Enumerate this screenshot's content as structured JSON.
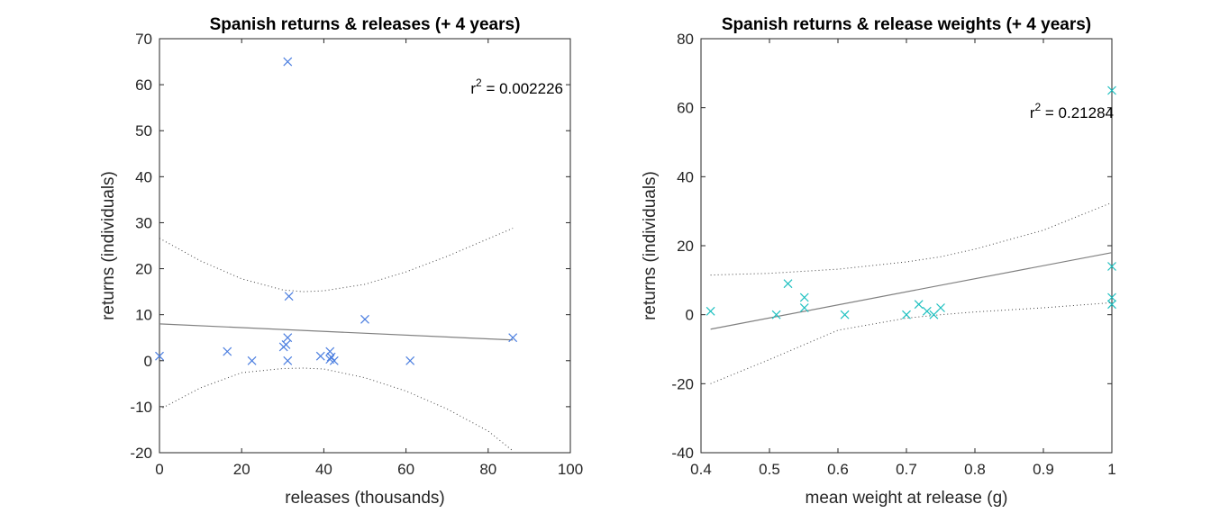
{
  "chart_data": [
    {
      "type": "scatter",
      "title": "Spanish returns & releases (+ 4 years)",
      "xlabel": "releases (thousands)",
      "ylabel": "returns (individuals)",
      "xlim": [
        0,
        100
      ],
      "ylim": [
        -20,
        70
      ],
      "xticks": [
        0,
        20,
        40,
        60,
        80,
        100
      ],
      "yticks": [
        -20,
        -10,
        0,
        10,
        20,
        30,
        40,
        50,
        60,
        70
      ],
      "grid": false,
      "marker": "x",
      "marker_color": "#4d7fe0",
      "annotation": {
        "prefix": "r",
        "superscript": "2",
        "value": "= 0.002226"
      },
      "points": [
        {
          "x": 0,
          "y": 1
        },
        {
          "x": 16.5,
          "y": 2
        },
        {
          "x": 22.5,
          "y": 0
        },
        {
          "x": 30.2,
          "y": 3
        },
        {
          "x": 30.8,
          "y": 3.5
        },
        {
          "x": 31.2,
          "y": 5
        },
        {
          "x": 31.2,
          "y": 0
        },
        {
          "x": 31.2,
          "y": 65
        },
        {
          "x": 31.5,
          "y": 14
        },
        {
          "x": 39.2,
          "y": 1
        },
        {
          "x": 41.5,
          "y": 2
        },
        {
          "x": 41.5,
          "y": 0.3
        },
        {
          "x": 41.8,
          "y": 0.8
        },
        {
          "x": 42.5,
          "y": 0
        },
        {
          "x": 50,
          "y": 9
        },
        {
          "x": 61,
          "y": 0
        },
        {
          "x": 86,
          "y": 5
        }
      ],
      "fit": {
        "x": [
          0,
          86
        ],
        "y": [
          8.0,
          4.5
        ],
        "color": "#808080"
      },
      "ci_upper": {
        "x": [
          0,
          10,
          20,
          30,
          35,
          40,
          50,
          60,
          70,
          80,
          86
        ],
        "y": [
          26.6,
          21.7,
          17.8,
          15.4,
          15.0,
          15.2,
          16.6,
          19.3,
          22.7,
          26.5,
          28.8
        ]
      },
      "ci_lower": {
        "x": [
          0,
          10,
          20,
          30,
          35,
          40,
          50,
          60,
          70,
          80,
          86
        ],
        "y": [
          -10.6,
          -5.9,
          -2.6,
          -1.7,
          -1.6,
          -1.8,
          -3.7,
          -6.6,
          -10.5,
          -15.3,
          -19.6
        ]
      }
    },
    {
      "type": "scatter",
      "title": "Spanish returns & release weights (+ 4 years)",
      "xlabel": "mean weight at release (g)",
      "ylabel": "returns (individuals)",
      "xlim": [
        0.4,
        1
      ],
      "ylim": [
        -40,
        80
      ],
      "xticks": [
        0.4,
        0.5,
        0.6,
        0.7,
        0.8,
        0.9,
        1
      ],
      "yticks": [
        -40,
        -20,
        0,
        20,
        40,
        60,
        80
      ],
      "grid": false,
      "marker": "x",
      "marker_color": "#1ec0c0",
      "annotation": {
        "prefix": "r",
        "superscript": "2",
        "value": "= 0.21284"
      },
      "points": [
        {
          "x": 0.414,
          "y": 1
        },
        {
          "x": 0.51,
          "y": 0
        },
        {
          "x": 0.527,
          "y": 9
        },
        {
          "x": 0.551,
          "y": 5
        },
        {
          "x": 0.551,
          "y": 2
        },
        {
          "x": 0.61,
          "y": 0
        },
        {
          "x": 0.7,
          "y": 0
        },
        {
          "x": 0.718,
          "y": 3
        },
        {
          "x": 0.73,
          "y": 1
        },
        {
          "x": 0.74,
          "y": 0
        },
        {
          "x": 0.75,
          "y": 2
        },
        {
          "x": 1.0,
          "y": 65
        },
        {
          "x": 1.0,
          "y": 14
        },
        {
          "x": 1.0,
          "y": 5
        },
        {
          "x": 1.0,
          "y": 3
        }
      ],
      "fit": {
        "x": [
          0.414,
          1
        ],
        "y": [
          -4.2,
          18.0
        ],
        "color": "#808080"
      },
      "ci_upper": {
        "x": [
          0.414,
          0.5,
          0.6,
          0.7,
          0.75,
          0.8,
          0.9,
          1
        ],
        "y": [
          11.5,
          12.0,
          13.2,
          15.3,
          16.8,
          19.0,
          24.5,
          32.5
        ]
      },
      "ci_lower": {
        "x": [
          0.414,
          0.5,
          0.6,
          0.7,
          0.75,
          0.8,
          0.9,
          1
        ],
        "y": [
          -20,
          -13.0,
          -4.5,
          -1.0,
          0.0,
          0.8,
          2.0,
          3.5
        ]
      }
    }
  ]
}
